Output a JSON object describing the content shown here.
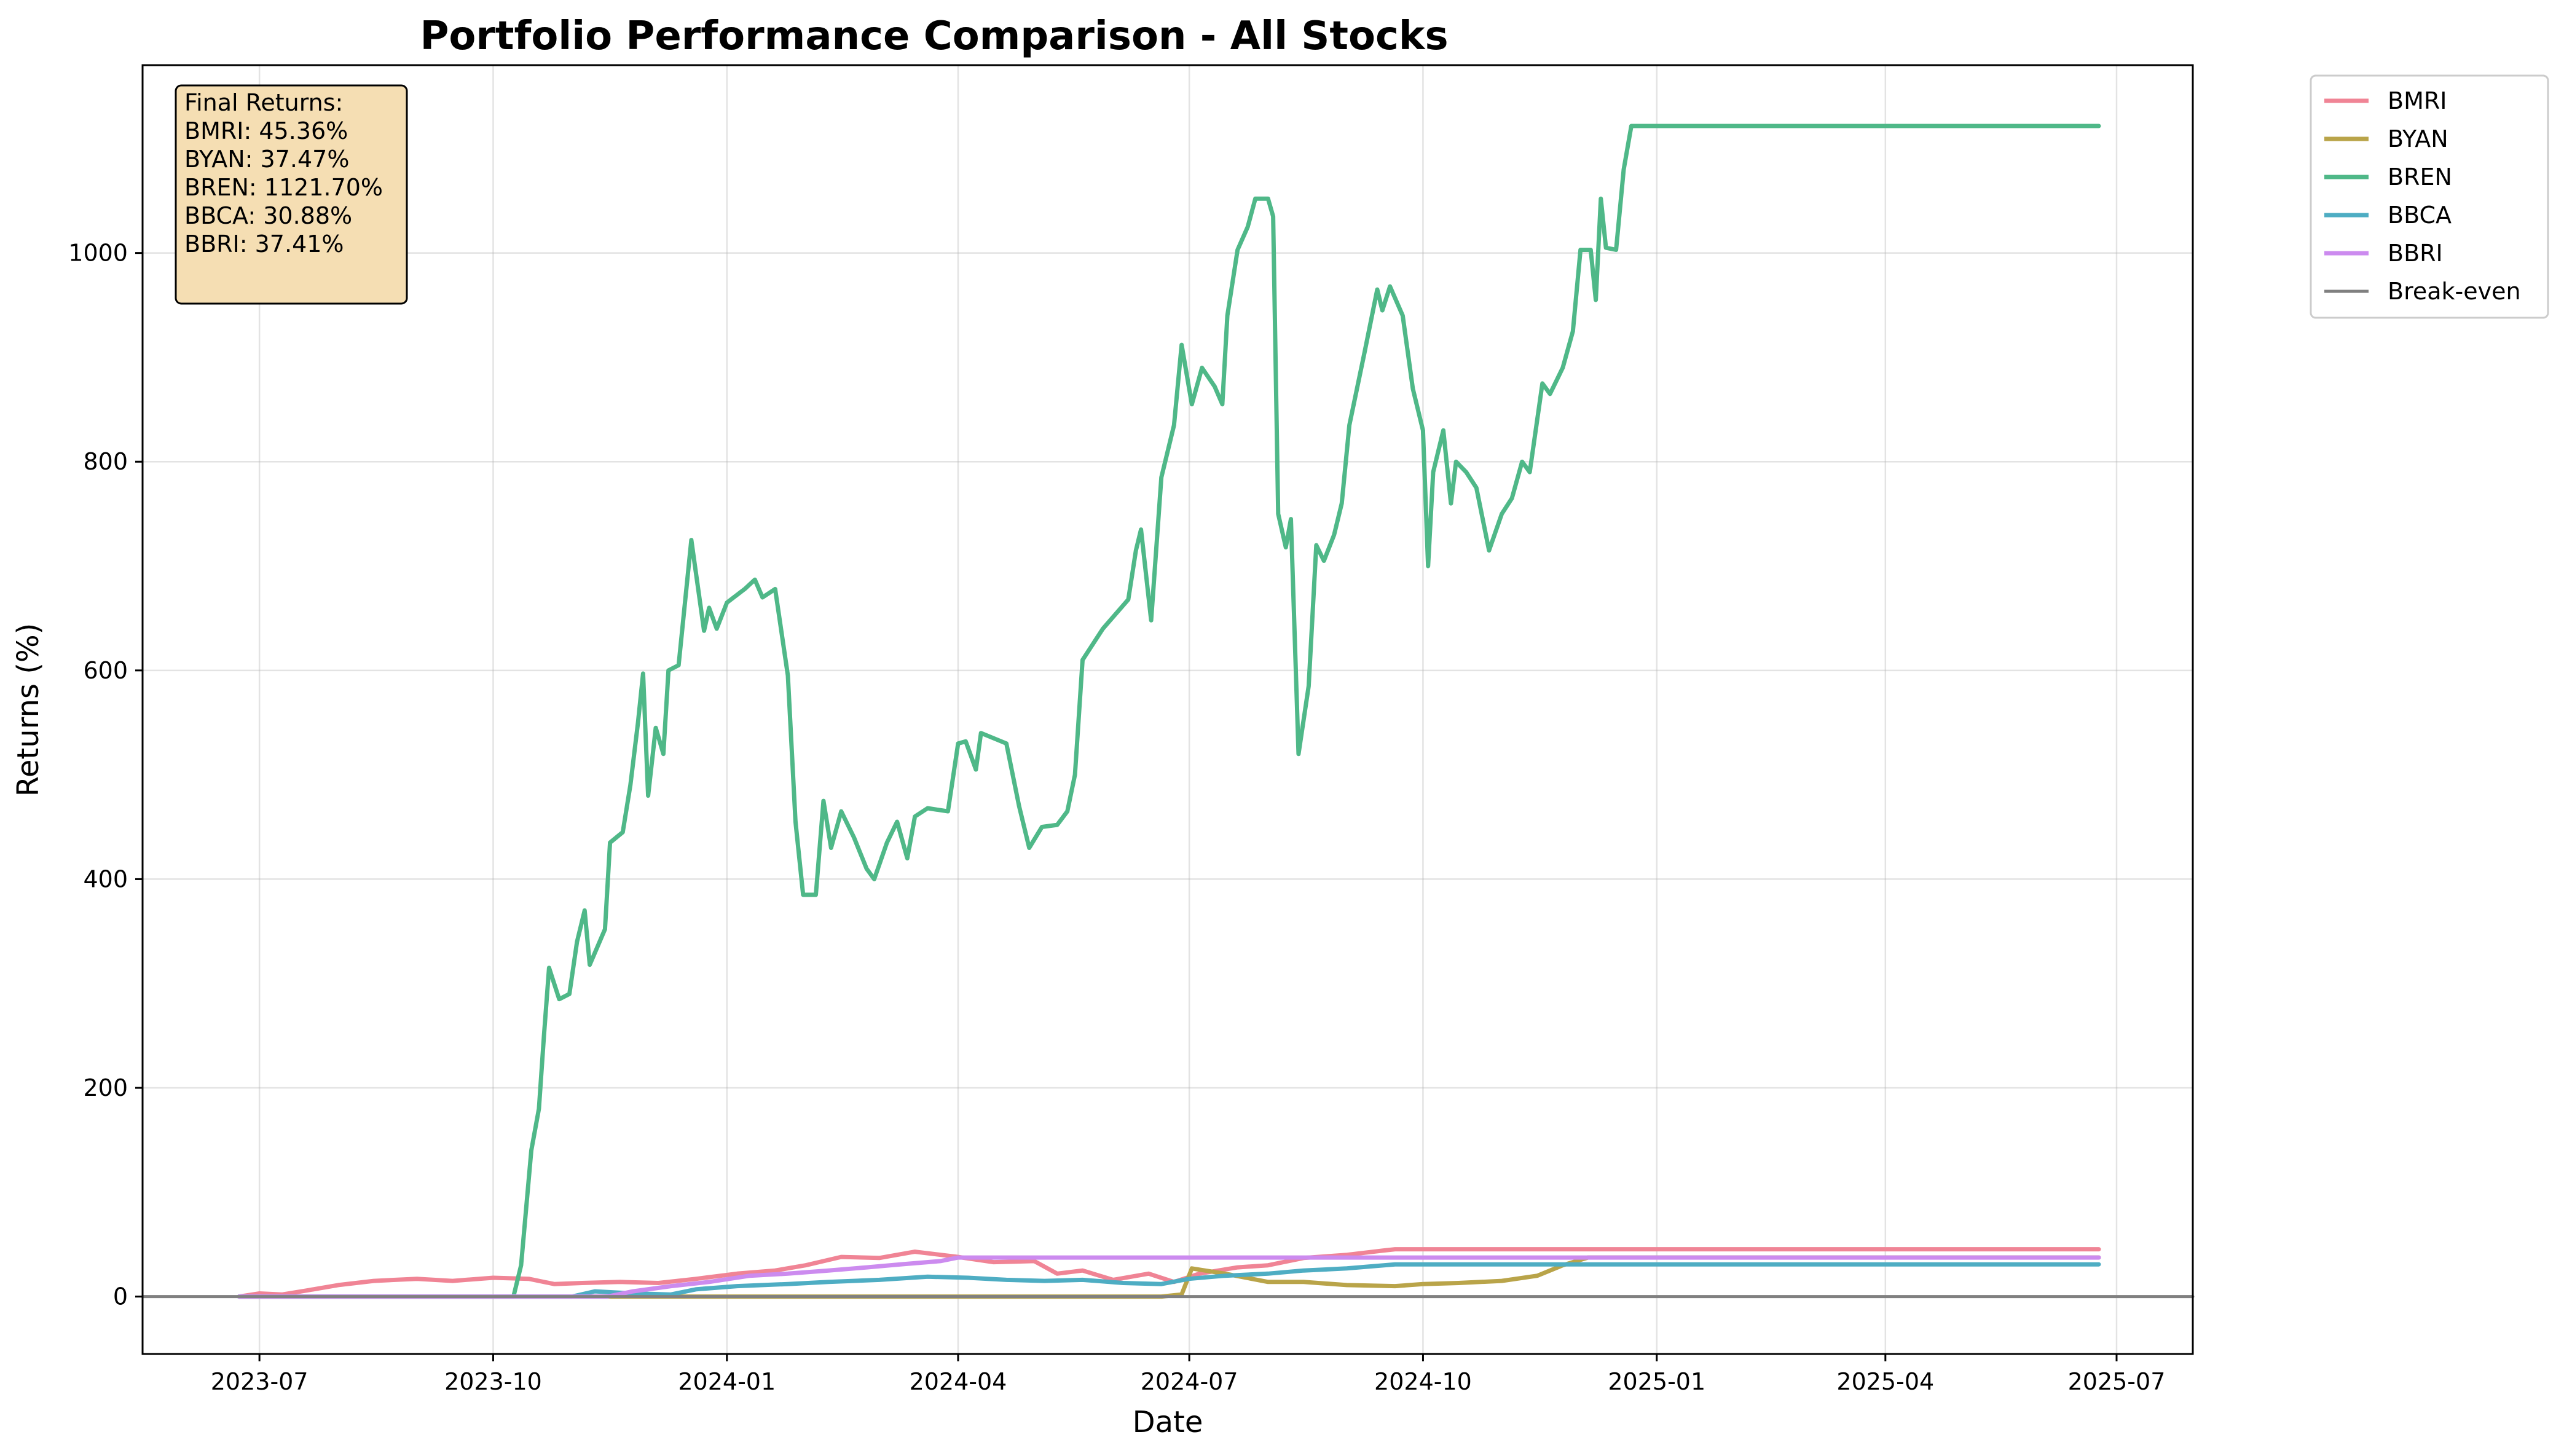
{
  "chart_data": {
    "type": "line",
    "title": "Portfolio Performance Comparison - All Stocks",
    "xlabel": "Date",
    "ylabel": "Returns (%)",
    "xlim": [
      "2023-05-16",
      "2025-07-31"
    ],
    "ylim": [
      -55,
      1180
    ],
    "x_ticks": [
      "2023-07",
      "2023-10",
      "2024-01",
      "2024-04",
      "2024-07",
      "2024-10",
      "2025-01",
      "2025-04",
      "2025-07"
    ],
    "y_ticks": [
      0,
      200,
      400,
      600,
      800,
      1000
    ],
    "grid": true,
    "legend_position": "outside-top-right",
    "series": [
      {
        "name": "BMRI",
        "color": "#f08495",
        "points": [
          [
            "2023-06-23",
            0
          ],
          [
            "2023-07-01",
            3
          ],
          [
            "2023-07-10",
            2
          ],
          [
            "2023-07-20",
            6
          ],
          [
            "2023-08-01",
            11
          ],
          [
            "2023-08-15",
            15
          ],
          [
            "2023-09-01",
            17
          ],
          [
            "2023-09-15",
            15
          ],
          [
            "2023-10-01",
            18
          ],
          [
            "2023-10-15",
            17
          ],
          [
            "2023-10-25",
            12
          ],
          [
            "2023-11-05",
            13
          ],
          [
            "2023-11-20",
            14
          ],
          [
            "2023-12-05",
            13
          ],
          [
            "2023-12-20",
            17
          ],
          [
            "2024-01-05",
            22
          ],
          [
            "2024-01-20",
            25
          ],
          [
            "2024-02-01",
            30
          ],
          [
            "2024-02-15",
            38
          ],
          [
            "2024-03-01",
            37
          ],
          [
            "2024-03-15",
            43
          ],
          [
            "2024-04-01",
            38
          ],
          [
            "2024-04-15",
            33
          ],
          [
            "2024-05-01",
            34
          ],
          [
            "2024-05-10",
            22
          ],
          [
            "2024-05-20",
            25
          ],
          [
            "2024-06-01",
            16
          ],
          [
            "2024-06-15",
            22
          ],
          [
            "2024-06-25",
            14
          ],
          [
            "2024-07-05",
            22
          ],
          [
            "2024-07-20",
            28
          ],
          [
            "2024-08-01",
            30
          ],
          [
            "2024-08-15",
            37
          ],
          [
            "2024-09-01",
            40
          ],
          [
            "2024-09-15",
            44
          ],
          [
            "2024-09-20",
            45.36
          ],
          [
            "2025-06-24",
            45.36
          ]
        ]
      },
      {
        "name": "BYAN",
        "color": "#b9a449",
        "points": [
          [
            "2023-06-23",
            0
          ],
          [
            "2024-06-20",
            0
          ],
          [
            "2024-06-28",
            2
          ],
          [
            "2024-07-02",
            27
          ],
          [
            "2024-07-15",
            22
          ],
          [
            "2024-08-01",
            14
          ],
          [
            "2024-08-15",
            14
          ],
          [
            "2024-09-01",
            11
          ],
          [
            "2024-09-20",
            10
          ],
          [
            "2024-10-01",
            12
          ],
          [
            "2024-10-15",
            13
          ],
          [
            "2024-11-01",
            15
          ],
          [
            "2024-11-15",
            20
          ],
          [
            "2024-11-25",
            30
          ],
          [
            "2024-12-05",
            37.47
          ],
          [
            "2025-06-24",
            37.47
          ]
        ]
      },
      {
        "name": "BREN",
        "color": "#4fb888",
        "points": [
          [
            "2023-06-23",
            0
          ],
          [
            "2023-10-09",
            0
          ],
          [
            "2023-10-12",
            30
          ],
          [
            "2023-10-16",
            140
          ],
          [
            "2023-10-19",
            180
          ],
          [
            "2023-10-21",
            250
          ],
          [
            "2023-10-23",
            315
          ],
          [
            "2023-10-27",
            285
          ],
          [
            "2023-10-31",
            290
          ],
          [
            "2023-11-03",
            340
          ],
          [
            "2023-11-06",
            370
          ],
          [
            "2023-11-08",
            318
          ],
          [
            "2023-11-14",
            352
          ],
          [
            "2023-11-16",
            435
          ],
          [
            "2023-11-21",
            445
          ],
          [
            "2023-11-24",
            490
          ],
          [
            "2023-11-27",
            550
          ],
          [
            "2023-11-29",
            597
          ],
          [
            "2023-12-01",
            480
          ],
          [
            "2023-12-04",
            545
          ],
          [
            "2023-12-07",
            520
          ],
          [
            "2023-12-09",
            600
          ],
          [
            "2023-12-13",
            605
          ],
          [
            "2023-12-18",
            725
          ],
          [
            "2023-12-20",
            690
          ],
          [
            "2023-12-23",
            638
          ],
          [
            "2023-12-25",
            660
          ],
          [
            "2023-12-28",
            640
          ],
          [
            "2024-01-01",
            665
          ],
          [
            "2024-01-08",
            678
          ],
          [
            "2024-01-12",
            687
          ],
          [
            "2024-01-15",
            670
          ],
          [
            "2024-01-20",
            678
          ],
          [
            "2024-01-25",
            595
          ],
          [
            "2024-01-28",
            455
          ],
          [
            "2024-01-31",
            385
          ],
          [
            "2024-02-05",
            385
          ],
          [
            "2024-02-08",
            475
          ],
          [
            "2024-02-11",
            430
          ],
          [
            "2024-02-15",
            465
          ],
          [
            "2024-02-20",
            440
          ],
          [
            "2024-02-25",
            410
          ],
          [
            "2024-02-28",
            400
          ],
          [
            "2024-03-04",
            435
          ],
          [
            "2024-03-08",
            455
          ],
          [
            "2024-03-12",
            420
          ],
          [
            "2024-03-15",
            460
          ],
          [
            "2024-03-20",
            468
          ],
          [
            "2024-03-28",
            465
          ],
          [
            "2024-04-01",
            530
          ],
          [
            "2024-04-04",
            532
          ],
          [
            "2024-04-08",
            505
          ],
          [
            "2024-04-10",
            540
          ],
          [
            "2024-04-20",
            530
          ],
          [
            "2024-04-25",
            470
          ],
          [
            "2024-04-29",
            430
          ],
          [
            "2024-05-04",
            450
          ],
          [
            "2024-05-10",
            452
          ],
          [
            "2024-05-14",
            465
          ],
          [
            "2024-05-17",
            500
          ],
          [
            "2024-05-20",
            610
          ],
          [
            "2024-05-28",
            640
          ],
          [
            "2024-06-07",
            668
          ],
          [
            "2024-06-10",
            715
          ],
          [
            "2024-06-12",
            735
          ],
          [
            "2024-06-16",
            648
          ],
          [
            "2024-06-20",
            785
          ],
          [
            "2024-06-25",
            835
          ],
          [
            "2024-06-28",
            912
          ],
          [
            "2024-07-02",
            855
          ],
          [
            "2024-07-06",
            890
          ],
          [
            "2024-07-11",
            872
          ],
          [
            "2024-07-14",
            855
          ],
          [
            "2024-07-16",
            940
          ],
          [
            "2024-07-20",
            1003
          ],
          [
            "2024-07-24",
            1025
          ],
          [
            "2024-07-27",
            1052
          ],
          [
            "2024-08-01",
            1052
          ],
          [
            "2024-08-03",
            1035
          ],
          [
            "2024-08-05",
            750
          ],
          [
            "2024-08-08",
            718
          ],
          [
            "2024-08-10",
            745
          ],
          [
            "2024-08-13",
            520
          ],
          [
            "2024-08-17",
            585
          ],
          [
            "2024-08-20",
            720
          ],
          [
            "2024-08-23",
            705
          ],
          [
            "2024-08-27",
            730
          ],
          [
            "2024-08-30",
            760
          ],
          [
            "2024-09-02",
            835
          ],
          [
            "2024-09-05",
            870
          ],
          [
            "2024-09-08",
            905
          ],
          [
            "2024-09-13",
            965
          ],
          [
            "2024-09-15",
            945
          ],
          [
            "2024-09-18",
            968
          ],
          [
            "2024-09-23",
            940
          ],
          [
            "2024-09-27",
            870
          ],
          [
            "2024-10-01",
            830
          ],
          [
            "2024-10-03",
            700
          ],
          [
            "2024-10-05",
            790
          ],
          [
            "2024-10-09",
            830
          ],
          [
            "2024-10-12",
            760
          ],
          [
            "2024-10-14",
            800
          ],
          [
            "2024-10-18",
            790
          ],
          [
            "2024-10-22",
            775
          ],
          [
            "2024-10-27",
            715
          ],
          [
            "2024-11-01",
            750
          ],
          [
            "2024-11-05",
            765
          ],
          [
            "2024-11-09",
            800
          ],
          [
            "2024-11-12",
            790
          ],
          [
            "2024-11-17",
            875
          ],
          [
            "2024-11-20",
            865
          ],
          [
            "2024-11-25",
            890
          ],
          [
            "2024-11-29",
            925
          ],
          [
            "2024-12-02",
            1003
          ],
          [
            "2024-12-06",
            1003
          ],
          [
            "2024-12-08",
            955
          ],
          [
            "2024-12-10",
            1052
          ],
          [
            "2024-12-12",
            1005
          ],
          [
            "2024-12-16",
            1003
          ],
          [
            "2024-12-19",
            1080
          ],
          [
            "2024-12-22",
            1121.7
          ],
          [
            "2025-06-24",
            1121.7
          ]
        ]
      },
      {
        "name": "BBCA",
        "color": "#4eadc3",
        "points": [
          [
            "2023-06-23",
            0
          ],
          [
            "2023-11-01",
            0
          ],
          [
            "2023-11-10",
            5
          ],
          [
            "2023-11-25",
            3
          ],
          [
            "2023-12-10",
            2
          ],
          [
            "2023-12-20",
            7
          ],
          [
            "2024-01-05",
            10
          ],
          [
            "2024-01-25",
            12
          ],
          [
            "2024-02-10",
            14
          ],
          [
            "2024-03-01",
            16
          ],
          [
            "2024-03-20",
            19
          ],
          [
            "2024-04-05",
            18
          ],
          [
            "2024-04-20",
            16
          ],
          [
            "2024-05-05",
            15
          ],
          [
            "2024-05-20",
            16
          ],
          [
            "2024-06-05",
            13
          ],
          [
            "2024-06-20",
            12
          ],
          [
            "2024-07-01",
            17
          ],
          [
            "2024-07-15",
            20
          ],
          [
            "2024-08-01",
            22
          ],
          [
            "2024-08-15",
            25
          ],
          [
            "2024-09-01",
            27
          ],
          [
            "2024-09-20",
            30.88
          ],
          [
            "2025-06-24",
            30.88
          ]
        ]
      },
      {
        "name": "BBRI",
        "color": "#cc8bef",
        "points": [
          [
            "2023-06-23",
            0
          ],
          [
            "2023-11-15",
            0
          ],
          [
            "2023-11-25",
            5
          ],
          [
            "2023-12-10",
            10
          ],
          [
            "2023-12-25",
            14
          ],
          [
            "2024-01-10",
            20
          ],
          [
            "2024-01-25",
            22
          ],
          [
            "2024-02-10",
            25
          ],
          [
            "2024-02-25",
            28
          ],
          [
            "2024-03-10",
            31
          ],
          [
            "2024-03-25",
            34
          ],
          [
            "2024-04-01",
            37.41
          ],
          [
            "2025-06-24",
            37.41
          ]
        ]
      },
      {
        "name": "Break-even",
        "color": "#808080",
        "points": [
          [
            "2023-05-16",
            0
          ],
          [
            "2025-07-31",
            0
          ]
        ]
      }
    ],
    "annotation": {
      "lines": [
        "Final Returns:",
        "BMRI: 45.36%",
        "BYAN: 37.47%",
        "BREN: 1121.70%",
        "BBCA: 30.88%",
        "BBRI: 37.41%"
      ],
      "background": "#f5deb3"
    }
  }
}
